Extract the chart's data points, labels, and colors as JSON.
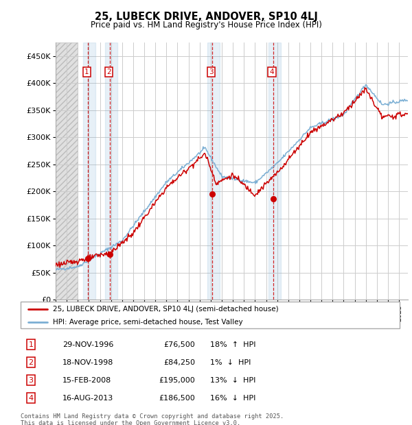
{
  "title": "25, LUBECK DRIVE, ANDOVER, SP10 4LJ",
  "subtitle": "Price paid vs. HM Land Registry's House Price Index (HPI)",
  "ylabel_ticks": [
    "£0",
    "£50K",
    "£100K",
    "£150K",
    "£200K",
    "£250K",
    "£300K",
    "£350K",
    "£400K",
    "£450K"
  ],
  "ylim": [
    0,
    475000
  ],
  "xlim_start": 1994.0,
  "xlim_end": 2025.8,
  "hpi_color": "#7bafd4",
  "price_color": "#cc0000",
  "transactions": [
    {
      "num": 1,
      "date_str": "29-NOV-1996",
      "date_x": 1996.91,
      "price": 76500,
      "pct": "18%",
      "dir": "↑"
    },
    {
      "num": 2,
      "date_str": "18-NOV-1998",
      "date_x": 1998.88,
      "price": 84250,
      "pct": "1%",
      "dir": "↓"
    },
    {
      "num": 3,
      "date_str": "15-FEB-2008",
      "date_x": 2008.12,
      "price": 195000,
      "pct": "13%",
      "dir": "↓"
    },
    {
      "num": 4,
      "date_str": "16-AUG-2013",
      "date_x": 2013.62,
      "price": 186500,
      "pct": "16%",
      "dir": "↓"
    }
  ],
  "legend_line1": "25, LUBECK DRIVE, ANDOVER, SP10 4LJ (semi-detached house)",
  "legend_line2": "HPI: Average price, semi-detached house, Test Valley",
  "footer": "Contains HM Land Registry data © Crown copyright and database right 2025.\nThis data is licensed under the Open Government Licence v3.0."
}
